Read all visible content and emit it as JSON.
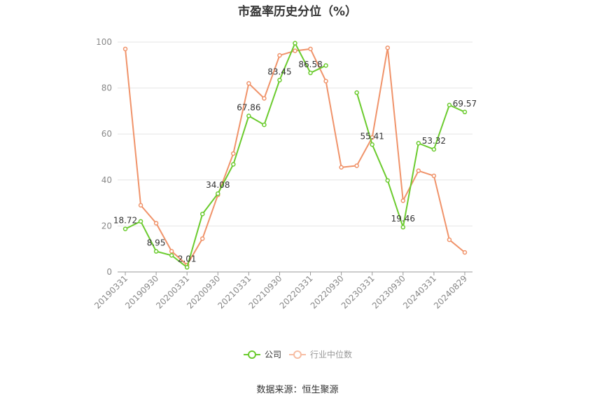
{
  "chart_data": {
    "type": "line",
    "title": "市盈率历史分位（%）",
    "source": "数据来源：恒生聚源",
    "xlabel": "",
    "ylabel": "",
    "ylim": [
      0,
      100
    ],
    "yticks": [
      0,
      20,
      40,
      60,
      80,
      100
    ],
    "x": [
      "20190331",
      "20190630",
      "20190930",
      "20191231",
      "20200331",
      "20200630",
      "20200930",
      "20201231",
      "20210331",
      "20210630",
      "20210930",
      "20211231",
      "20220331",
      "20220630",
      "20220930",
      "20221231",
      "20230331",
      "20230630",
      "20230930",
      "20231231",
      "20240331",
      "20240630",
      "20240829"
    ],
    "xtick_labels": [
      "20190331",
      "20190930",
      "20200331",
      "20200930",
      "20210331",
      "20210930",
      "20220331",
      "20220930",
      "20230331",
      "20230930",
      "20240331",
      "20240829"
    ],
    "legend_position": "bottom",
    "series": [
      {
        "name": "公司",
        "color": "#6bcb2e",
        "values": [
          18.72,
          22,
          8.95,
          7.2,
          2.01,
          25.2,
          34.08,
          46.8,
          67.86,
          64,
          83.45,
          99.5,
          86.58,
          89.8,
          null,
          78,
          55.41,
          39.8,
          19.46,
          56,
          53.32,
          72.6,
          69.57
        ],
        "labels": {
          "0": "18.72",
          "2": "8.95",
          "4": "2.01",
          "6": "34.08",
          "8": "67.86",
          "10": "83.45",
          "12": "86.58",
          "16": "55.41",
          "18": "19.46",
          "20": "53.32",
          "22": "69.57"
        }
      },
      {
        "name": "行业中位数",
        "color": "#f0936a",
        "values": [
          97,
          29,
          21.2,
          9,
          3,
          14.5,
          33.5,
          51.5,
          82,
          75.5,
          94.2,
          96.2,
          97,
          83,
          45.5,
          46.2,
          58.5,
          97.5,
          31,
          44,
          41.8,
          14,
          8.5
        ]
      }
    ]
  }
}
